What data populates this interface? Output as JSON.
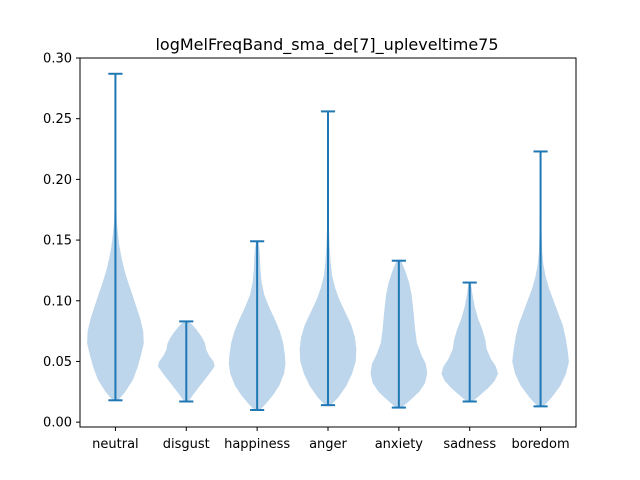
{
  "chart_data": {
    "type": "violin",
    "title": "logMelFreqBand_sma_de[7]_upleveltime75",
    "xlabel": "",
    "ylabel": "",
    "ylim": [
      -0.004,
      0.3
    ],
    "yticks": [
      0.0,
      0.05,
      0.1,
      0.15,
      0.2,
      0.25,
      0.3
    ],
    "ytick_labels": [
      "0.00",
      "0.05",
      "0.10",
      "0.15",
      "0.20",
      "0.25",
      "0.30"
    ],
    "categories": [
      "neutral",
      "disgust",
      "happiness",
      "anger",
      "anxiety",
      "sadness",
      "boredom"
    ],
    "series": [
      {
        "name": "neutral",
        "min": 0.018,
        "max": 0.287,
        "density": [
          [
            0.018,
            0.1
          ],
          [
            0.025,
            0.35
          ],
          [
            0.035,
            0.62
          ],
          [
            0.045,
            0.78
          ],
          [
            0.055,
            0.9
          ],
          [
            0.065,
            1.0
          ],
          [
            0.075,
            0.98
          ],
          [
            0.085,
            0.88
          ],
          [
            0.095,
            0.74
          ],
          [
            0.105,
            0.6
          ],
          [
            0.115,
            0.45
          ],
          [
            0.125,
            0.32
          ],
          [
            0.135,
            0.22
          ],
          [
            0.145,
            0.14
          ],
          [
            0.155,
            0.09
          ],
          [
            0.165,
            0.05
          ],
          [
            0.18,
            0.03
          ],
          [
            0.2,
            0.02
          ],
          [
            0.22,
            0.015
          ],
          [
            0.25,
            0.01
          ],
          [
            0.287,
            0.006
          ]
        ]
      },
      {
        "name": "disgust",
        "min": 0.017,
        "max": 0.083,
        "density": [
          [
            0.017,
            0.08
          ],
          [
            0.022,
            0.22
          ],
          [
            0.028,
            0.42
          ],
          [
            0.034,
            0.62
          ],
          [
            0.04,
            0.82
          ],
          [
            0.046,
            1.0
          ],
          [
            0.05,
            0.96
          ],
          [
            0.055,
            0.8
          ],
          [
            0.06,
            0.7
          ],
          [
            0.065,
            0.66
          ],
          [
            0.07,
            0.55
          ],
          [
            0.075,
            0.4
          ],
          [
            0.08,
            0.22
          ],
          [
            0.083,
            0.08
          ]
        ]
      },
      {
        "name": "happiness",
        "min": 0.01,
        "max": 0.149,
        "density": [
          [
            0.01,
            0.1
          ],
          [
            0.015,
            0.3
          ],
          [
            0.022,
            0.55
          ],
          [
            0.03,
            0.78
          ],
          [
            0.04,
            0.95
          ],
          [
            0.048,
            1.0
          ],
          [
            0.055,
            0.98
          ],
          [
            0.065,
            0.92
          ],
          [
            0.075,
            0.8
          ],
          [
            0.085,
            0.62
          ],
          [
            0.095,
            0.42
          ],
          [
            0.105,
            0.25
          ],
          [
            0.115,
            0.16
          ],
          [
            0.125,
            0.12
          ],
          [
            0.135,
            0.1
          ],
          [
            0.142,
            0.08
          ],
          [
            0.149,
            0.04
          ]
        ]
      },
      {
        "name": "anger",
        "min": 0.014,
        "max": 0.256,
        "density": [
          [
            0.014,
            0.1
          ],
          [
            0.02,
            0.35
          ],
          [
            0.03,
            0.65
          ],
          [
            0.04,
            0.85
          ],
          [
            0.05,
            0.98
          ],
          [
            0.06,
            1.0
          ],
          [
            0.07,
            0.95
          ],
          [
            0.08,
            0.82
          ],
          [
            0.09,
            0.62
          ],
          [
            0.1,
            0.42
          ],
          [
            0.11,
            0.26
          ],
          [
            0.12,
            0.15
          ],
          [
            0.13,
            0.1
          ],
          [
            0.14,
            0.07
          ],
          [
            0.15,
            0.05
          ],
          [
            0.16,
            0.03
          ],
          [
            0.18,
            0.02
          ],
          [
            0.21,
            0.012
          ],
          [
            0.256,
            0.005
          ]
        ]
      },
      {
        "name": "anxiety",
        "min": 0.012,
        "max": 0.133,
        "density": [
          [
            0.012,
            0.1
          ],
          [
            0.018,
            0.4
          ],
          [
            0.025,
            0.72
          ],
          [
            0.032,
            0.92
          ],
          [
            0.04,
            1.0
          ],
          [
            0.048,
            0.95
          ],
          [
            0.055,
            0.8
          ],
          [
            0.065,
            0.64
          ],
          [
            0.075,
            0.58
          ],
          [
            0.085,
            0.54
          ],
          [
            0.095,
            0.5
          ],
          [
            0.105,
            0.45
          ],
          [
            0.115,
            0.36
          ],
          [
            0.125,
            0.22
          ],
          [
            0.133,
            0.08
          ]
        ]
      },
      {
        "name": "sadness",
        "min": 0.017,
        "max": 0.115,
        "density": [
          [
            0.017,
            0.1
          ],
          [
            0.022,
            0.35
          ],
          [
            0.028,
            0.65
          ],
          [
            0.034,
            0.88
          ],
          [
            0.04,
            1.0
          ],
          [
            0.046,
            0.92
          ],
          [
            0.052,
            0.75
          ],
          [
            0.06,
            0.6
          ],
          [
            0.068,
            0.55
          ],
          [
            0.076,
            0.45
          ],
          [
            0.085,
            0.3
          ],
          [
            0.095,
            0.18
          ],
          [
            0.105,
            0.1
          ],
          [
            0.115,
            0.04
          ]
        ]
      },
      {
        "name": "boredom",
        "min": 0.013,
        "max": 0.223,
        "density": [
          [
            0.013,
            0.1
          ],
          [
            0.02,
            0.38
          ],
          [
            0.03,
            0.7
          ],
          [
            0.04,
            0.9
          ],
          [
            0.05,
            1.0
          ],
          [
            0.06,
            0.95
          ],
          [
            0.07,
            0.88
          ],
          [
            0.08,
            0.78
          ],
          [
            0.09,
            0.62
          ],
          [
            0.1,
            0.46
          ],
          [
            0.11,
            0.3
          ],
          [
            0.12,
            0.18
          ],
          [
            0.13,
            0.1
          ],
          [
            0.14,
            0.06
          ],
          [
            0.16,
            0.03
          ],
          [
            0.19,
            0.015
          ],
          [
            0.223,
            0.005
          ]
        ]
      }
    ],
    "colors": {
      "body": "#b9d4ea",
      "line": "#1f77b4",
      "axes": "#000000"
    }
  }
}
